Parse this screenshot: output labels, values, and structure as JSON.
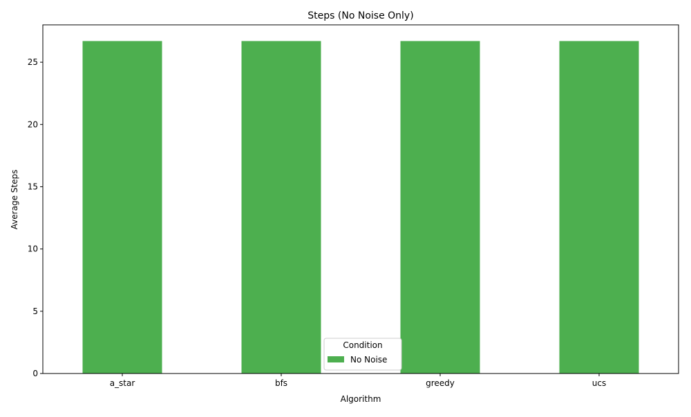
{
  "chart_data": {
    "type": "bar",
    "title": "Steps (No Noise Only)",
    "xlabel": "Algorithm",
    "ylabel": "Average Steps",
    "categories": [
      "a_star",
      "bfs",
      "greedy",
      "ucs"
    ],
    "series": [
      {
        "name": "No Noise",
        "color": "#4daf4f",
        "values": [
          26.7,
          26.7,
          26.7,
          26.7
        ]
      }
    ],
    "ylim": [
      0,
      28
    ],
    "yticks": [
      0,
      5,
      10,
      15,
      20,
      25
    ],
    "grid": false,
    "legend": {
      "title": "Condition",
      "placement": "bottom-center"
    }
  }
}
